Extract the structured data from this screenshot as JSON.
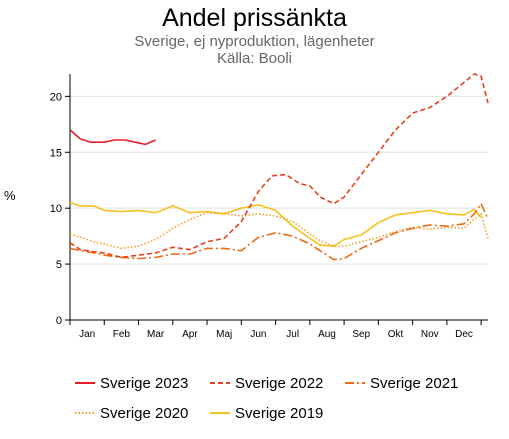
{
  "chart_data": {
    "type": "line",
    "title": "Andel prissänkta",
    "subtitle": "Sverige, ej nyproduktion, lägenheter",
    "source": "Källa: Booli",
    "ylabel": "%",
    "xlabel": "",
    "ylim": [
      0,
      22
    ],
    "xlim": [
      0,
      12.2
    ],
    "yticks": [
      0,
      5,
      10,
      15,
      20
    ],
    "x_tick_labels": [
      "Jan",
      "Feb",
      "Mar",
      "Apr",
      "Maj",
      "Jun",
      "Jul",
      "Aug",
      "Sep",
      "Okt",
      "Nov",
      "Dec"
    ],
    "grid": "horizontal",
    "legend_position": "bottom",
    "series": [
      {
        "name": "Sverige 2023",
        "color": "#e3202a",
        "dash": "solid",
        "x": [
          0,
          0.3,
          0.6,
          1.0,
          1.3,
          1.6,
          1.9,
          2.2,
          2.5
        ],
        "y": [
          17.0,
          16.2,
          15.9,
          15.9,
          16.1,
          16.1,
          15.9,
          15.7,
          16.1
        ]
      },
      {
        "name": "Sverige 2022",
        "color": "#e8401a",
        "dash": "dash",
        "x": [
          0,
          0.3,
          0.7,
          1.0,
          1.5,
          2.0,
          2.5,
          3.0,
          3.5,
          4.0,
          4.5,
          5.0,
          5.5,
          5.9,
          6.3,
          6.7,
          7.0,
          7.3,
          7.7,
          8.0,
          8.5,
          9.0,
          9.5,
          10.0,
          10.5,
          11.0,
          11.4,
          11.8,
          12.0,
          12.2
        ],
        "y": [
          6.9,
          6.3,
          6.1,
          6.0,
          5.6,
          5.8,
          6.0,
          6.5,
          6.3,
          7.0,
          7.3,
          8.8,
          11.5,
          12.9,
          13.0,
          12.2,
          12.0,
          11.0,
          10.4,
          11.0,
          13.0,
          15.0,
          17.0,
          18.5,
          19.0,
          20.0,
          21.0,
          22.0,
          21.8,
          19.4
        ]
      },
      {
        "name": "Sverige 2021",
        "color": "#ee6a12",
        "dash": "dashdot",
        "x": [
          0,
          0.3,
          0.7,
          1.0,
          1.5,
          2.0,
          2.5,
          3.0,
          3.5,
          4.0,
          4.5,
          5.0,
          5.5,
          6.0,
          6.5,
          7.0,
          7.3,
          7.7,
          8.0,
          8.5,
          9.0,
          9.5,
          10.0,
          10.5,
          11.0,
          11.5,
          11.8,
          12.0,
          12.2
        ],
        "y": [
          6.4,
          6.2,
          6.0,
          5.8,
          5.6,
          5.5,
          5.6,
          5.9,
          5.9,
          6.4,
          6.4,
          6.2,
          7.4,
          7.8,
          7.5,
          6.8,
          6.2,
          5.4,
          5.5,
          6.4,
          7.1,
          7.8,
          8.2,
          8.5,
          8.4,
          8.6,
          9.5,
          10.4,
          9.0
        ]
      },
      {
        "name": "Sverige 2020",
        "color": "#f2a126",
        "dash": "dot",
        "x": [
          0,
          0.3,
          0.7,
          1.0,
          1.5,
          2.0,
          2.5,
          3.0,
          3.5,
          4.0,
          4.5,
          5.0,
          5.5,
          6.0,
          6.5,
          7.0,
          7.3,
          7.7,
          8.0,
          8.5,
          9.0,
          9.5,
          10.0,
          10.5,
          11.0,
          11.5,
          11.8,
          12.0,
          12.2
        ],
        "y": [
          7.7,
          7.4,
          7.0,
          6.8,
          6.4,
          6.6,
          7.2,
          8.2,
          9.0,
          9.6,
          9.5,
          9.3,
          9.5,
          9.3,
          8.8,
          7.7,
          7.1,
          6.6,
          6.6,
          7.0,
          7.4,
          7.9,
          8.3,
          8.1,
          8.3,
          8.2,
          9.0,
          9.5,
          7.3
        ]
      },
      {
        "name": "Sverige 2019",
        "color": "#f5c01e",
        "dash": "solid",
        "x": [
          0,
          0.3,
          0.7,
          1.0,
          1.5,
          2.0,
          2.5,
          3.0,
          3.5,
          4.0,
          4.5,
          5.0,
          5.5,
          6.0,
          6.5,
          7.0,
          7.3,
          7.7,
          8.0,
          8.5,
          9.0,
          9.5,
          10.0,
          10.5,
          11.0,
          11.5,
          11.8,
          12.0
        ],
        "y": [
          10.5,
          10.2,
          10.2,
          9.8,
          9.7,
          9.8,
          9.6,
          10.2,
          9.6,
          9.7,
          9.5,
          10.0,
          10.3,
          9.8,
          8.4,
          7.3,
          6.7,
          6.6,
          7.2,
          7.6,
          8.7,
          9.4,
          9.6,
          9.8,
          9.5,
          9.4,
          9.9,
          9.2
        ]
      }
    ]
  }
}
